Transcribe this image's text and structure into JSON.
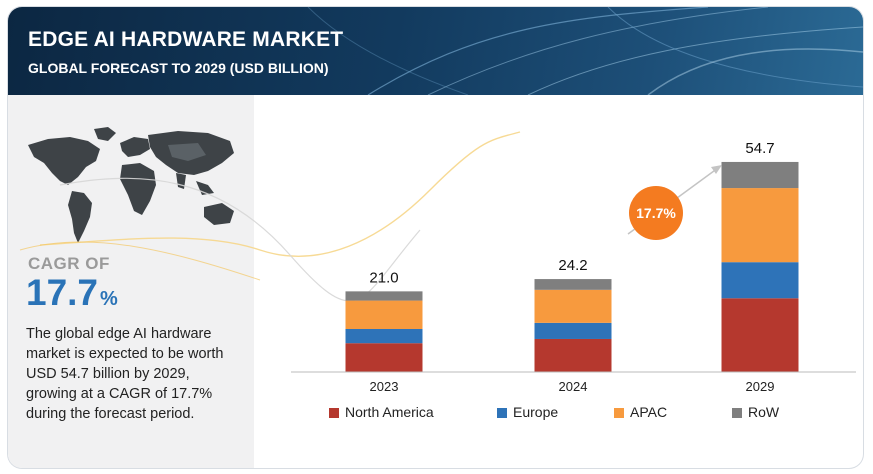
{
  "header": {
    "title": "EDGE AI HARDWARE MARKET",
    "subtitle": "GLOBAL FORECAST TO 2029 (USD BILLION)"
  },
  "cagr": {
    "label": "CAGR OF",
    "value": "17.7",
    "unit": "%",
    "badge": "17.7%"
  },
  "description": "The global edge AI hardware market is expected to be worth USD 54.7 billion by 2029, growing at a CAGR of 17.7% during the forecast period.",
  "colors": {
    "north_america": "#b5382e",
    "europe": "#2e73b8",
    "apac": "#f79a3e",
    "row": "#7f7f7f",
    "badge": "#f47b20",
    "accent_blue": "#2a73b7"
  },
  "icons": [
    "world-map-icon",
    "growth-arrow-icon"
  ],
  "chart_data": {
    "type": "bar",
    "stacked": true,
    "categories": [
      "2023",
      "2024",
      "2029"
    ],
    "totals_labels": [
      "21.0",
      "24.2",
      "54.7"
    ],
    "totals": [
      21.0,
      24.2,
      54.7
    ],
    "series": [
      {
        "name": "North America",
        "color": "#b5382e",
        "values": [
          7.5,
          8.6,
          19.2
        ]
      },
      {
        "name": "Europe",
        "color": "#2e73b8",
        "values": [
          3.7,
          4.2,
          9.4
        ]
      },
      {
        "name": "APAC",
        "color": "#f79a3e",
        "values": [
          7.4,
          8.6,
          19.3
        ]
      },
      {
        "name": "RoW",
        "color": "#7f7f7f",
        "values": [
          2.4,
          2.8,
          6.8
        ]
      }
    ],
    "ylim": [
      0,
      60
    ],
    "grid": false,
    "legend": "bottom"
  }
}
